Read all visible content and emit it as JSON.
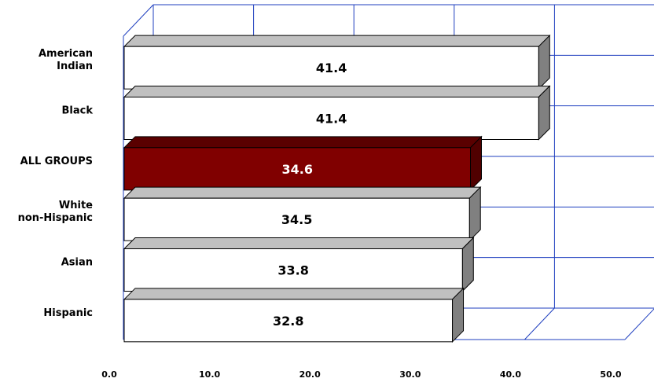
{
  "chart_data": {
    "type": "bar",
    "orientation": "horizontal",
    "style": "3d",
    "categories": [
      [
        "American",
        "Indian"
      ],
      [
        "Black"
      ],
      [
        "ALL GROUPS"
      ],
      [
        "White",
        "non-Hispanic"
      ],
      [
        "Asian"
      ],
      [
        "Hispanic"
      ]
    ],
    "values": [
      41.4,
      41.4,
      34.6,
      34.5,
      33.8,
      32.8
    ],
    "value_labels": [
      "41.4",
      "41.4",
      "34.6",
      "34.5",
      "33.8",
      "32.8"
    ],
    "highlight_index": 2,
    "xlim": [
      0,
      50
    ],
    "xticks": [
      "0.0",
      "10.0",
      "20.0",
      "30.0",
      "40.0",
      "50.0"
    ],
    "grid": true,
    "legend": "none",
    "colors": {
      "bar_front": "#ffffff",
      "bar_side": "#808080",
      "bar_top": "#c0c0c0",
      "highlight_front": "#800000",
      "highlight_side": "#500000",
      "highlight_top": "#5a0000",
      "grid": "#1f3fbf",
      "text": "#000000",
      "highlight_text": "#ffffff"
    }
  }
}
